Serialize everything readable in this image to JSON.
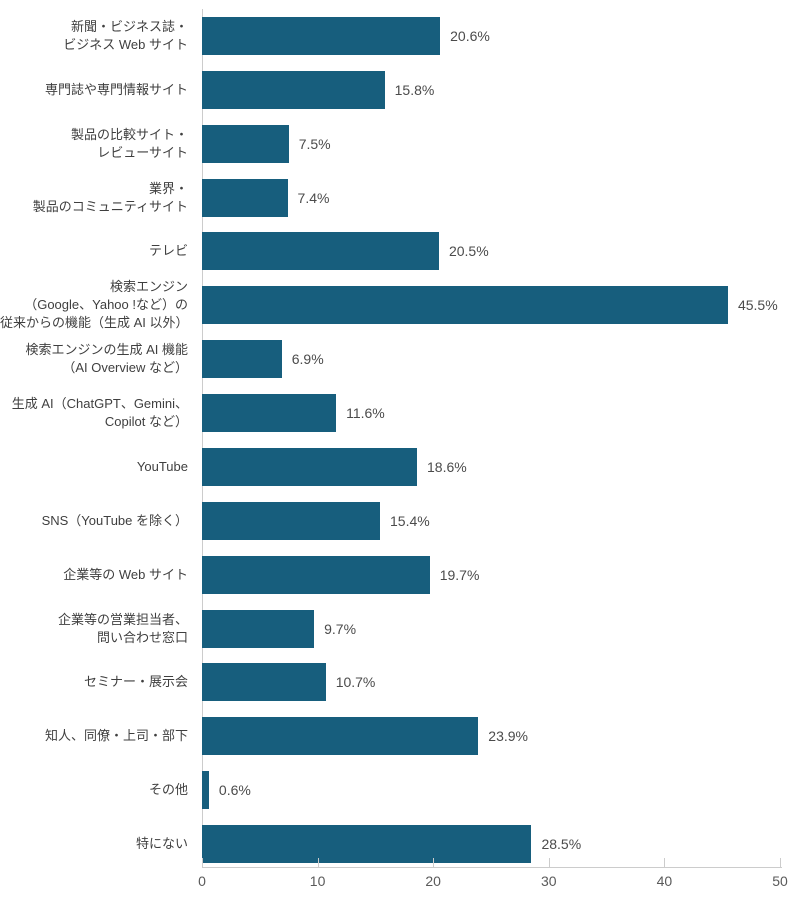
{
  "chart_data": {
    "type": "bar",
    "orientation": "horizontal",
    "title": "",
    "xlabel": "",
    "ylabel": "",
    "xlim": [
      0,
      50
    ],
    "x_ticks": [
      0,
      10,
      20,
      30,
      40,
      50
    ],
    "grid": false,
    "legend": false,
    "bar_color": "#175e7d",
    "axis_color": "#cccccc",
    "label_color": "#3f3f3f",
    "value_color": "#4b4b4b",
    "tick_text_color": "#5a5a5a",
    "categories": [
      [
        "新聞・ビジネス誌・",
        "ビジネス Web サイト"
      ],
      [
        "専門誌や専門情報サイト"
      ],
      [
        "製品の比較サイト・",
        "レビューサイト"
      ],
      [
        "業界・",
        "製品のコミュニティサイト"
      ],
      [
        "テレビ"
      ],
      [
        "検索エンジン",
        "（Google、Yahoo !など）の",
        "従来からの機能（生成 AI 以外）"
      ],
      [
        "検索エンジンの生成 AI 機能",
        "（AI Overview など）"
      ],
      [
        "生成 AI（ChatGPT、Gemini、",
        "Copilot など）"
      ],
      [
        "YouTube"
      ],
      [
        "SNS（YouTube を除く）"
      ],
      [
        "企業等の Web サイト"
      ],
      [
        "企業等の営業担当者、",
        "問い合わせ窓口"
      ],
      [
        "セミナー・展示会"
      ],
      [
        "知人、同僚・上司・部下"
      ],
      [
        "その他"
      ],
      [
        "特にない"
      ]
    ],
    "values": [
      20.6,
      15.8,
      7.5,
      7.4,
      20.5,
      45.5,
      6.9,
      11.6,
      18.6,
      15.4,
      19.7,
      9.7,
      10.7,
      23.9,
      0.6,
      28.5
    ],
    "value_labels": [
      "20.6%",
      "15.8%",
      "7.5%",
      "7.4%",
      "20.5%",
      "45.5%",
      "6.9%",
      "11.6%",
      "18.6%",
      "15.4%",
      "19.7%",
      "9.7%",
      "10.7%",
      "23.9%",
      "0.6%",
      "28.5%"
    ]
  }
}
